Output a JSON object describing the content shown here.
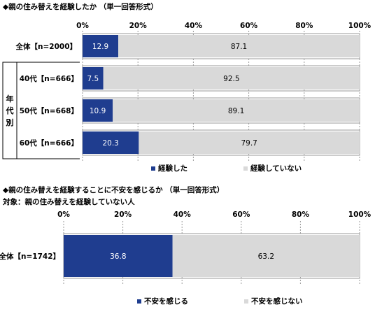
{
  "chart_data": [
    {
      "type": "bar",
      "orientation": "horizontal",
      "stacked": true,
      "percent": true,
      "title": "◆親の住み替えを経験したか （単一回答形式）",
      "x_ticks": [
        "0%",
        "20%",
        "40%",
        "60%",
        "80%",
        "100%"
      ],
      "xlim": [
        0,
        100
      ],
      "group_label": "年代別",
      "categories": [
        "全体【n=2000】",
        "40代【n=666】",
        "50代【n=668】",
        "60代【n=666】"
      ],
      "series": [
        {
          "name": "経験した",
          "color": "#1f3d8f",
          "values": [
            12.9,
            7.5,
            10.9,
            20.3
          ]
        },
        {
          "name": "経験していない",
          "color": "#d9d9d9",
          "values": [
            87.1,
            92.5,
            89.1,
            79.7
          ]
        }
      ],
      "legend_position": "bottom"
    },
    {
      "type": "bar",
      "orientation": "horizontal",
      "stacked": true,
      "percent": true,
      "title": "◆親の住み替えを経験することに不安を感じるか （単一回答形式）",
      "subtitle": "対象：親の住み替えを経験していない人",
      "x_ticks": [
        "0%",
        "20%",
        "40%",
        "60%",
        "80%",
        "100%"
      ],
      "xlim": [
        0,
        100
      ],
      "categories": [
        "全体【n=1742】"
      ],
      "series": [
        {
          "name": "不安を感じる",
          "color": "#1f3d8f",
          "values": [
            36.8
          ]
        },
        {
          "name": "不安を感じない",
          "color": "#d9d9d9",
          "values": [
            63.2
          ]
        }
      ],
      "legend_position": "bottom"
    }
  ]
}
